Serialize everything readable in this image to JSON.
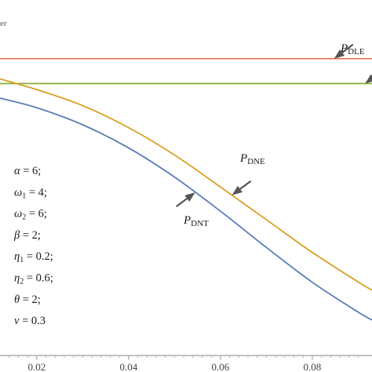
{
  "chart_data": {
    "type": "line",
    "corner_text": "er",
    "xlim": [
      0.012,
      0.093
    ],
    "ylim": [
      0,
      1
    ],
    "x_ticks": [
      0.02,
      0.04,
      0.06,
      0.08
    ],
    "x_tick_labels": [
      "0.02",
      "0.04",
      "0.06",
      "0.08"
    ],
    "grid": false,
    "series": [
      {
        "key": "dle",
        "label_main": "P",
        "label_sub": "DLE",
        "color": "#e8735a",
        "x": [
          0.012,
          0.093
        ],
        "y": [
          0.835,
          0.835
        ]
      },
      {
        "key": "flat",
        "label_main": "",
        "label_sub": "",
        "color": "#8fb03c",
        "x": [
          0.012,
          0.093
        ],
        "y": [
          0.765,
          0.765
        ]
      },
      {
        "key": "dne",
        "label_main": "P",
        "label_sub": "DNE",
        "color": "#d9a024",
        "x": [
          0.012,
          0.02,
          0.03,
          0.04,
          0.05,
          0.06,
          0.07,
          0.08,
          0.09,
          0.093
        ],
        "y": [
          0.778,
          0.748,
          0.703,
          0.641,
          0.564,
          0.474,
          0.382,
          0.29,
          0.207,
          0.184
        ]
      },
      {
        "key": "dnt",
        "label_main": "P",
        "label_sub": "DNT",
        "color": "#5a7cb8",
        "x": [
          0.012,
          0.02,
          0.03,
          0.04,
          0.05,
          0.06,
          0.07,
          0.08,
          0.09,
          0.093
        ],
        "y": [
          0.724,
          0.697,
          0.649,
          0.584,
          0.502,
          0.406,
          0.304,
          0.206,
          0.122,
          0.1
        ]
      }
    ],
    "parameters": [
      {
        "symbol": "α",
        "sub": "",
        "value": "= 6;"
      },
      {
        "symbol": "ω",
        "sub": "1",
        "value": "= 4;"
      },
      {
        "symbol": "ω",
        "sub": "2",
        "value": "= 6;"
      },
      {
        "symbol": "β",
        "sub": "",
        "value": "= 2;"
      },
      {
        "symbol": "η",
        "sub": "1",
        "value": "= 0.2;"
      },
      {
        "symbol": "η",
        "sub": "2",
        "value": "= 0.6;"
      },
      {
        "symbol": "θ",
        "sub": "",
        "value": "= 2;"
      },
      {
        "symbol": "ν",
        "sub": "",
        "value": "= 0.3"
      }
    ]
  }
}
